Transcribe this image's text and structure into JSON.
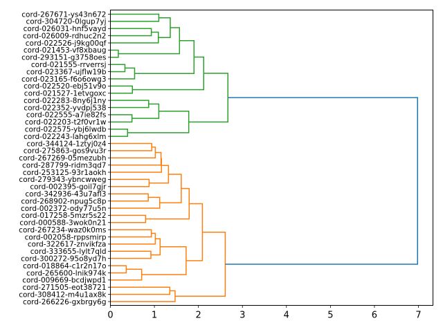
{
  "chart_data": {
    "type": "dendrogram",
    "orientation": "left",
    "title": "",
    "xlabel": "",
    "ylabel": "",
    "xlim": [
      0,
      7.33
    ],
    "xticks": [
      0,
      1,
      2,
      3,
      4,
      5,
      6,
      7
    ],
    "xtick_labels": [
      "0",
      "1",
      "2",
      "3",
      "4",
      "5",
      "6",
      "7"
    ],
    "grid": false,
    "colors": {
      "cluster_1": "#2ca02c",
      "cluster_2": "#ff7f0e",
      "above_threshold": "#1f77b4"
    },
    "leaves": [
      "cord-267671-ys43n672",
      "cord-304720-0lgup7yj",
      "cord-026031-hnf5vayd",
      "cord-026009-rdhuc2n2",
      "cord-022526-j9kg00qf",
      "cord-021453-vf8xbaug",
      "cord-293151-g3758oes",
      "cord-021555-rrverrsj",
      "cord-023367-ujflw19b",
      "cord-023165-f6o6owg3",
      "cord-022520-ebj51v9o",
      "cord-021527-1etvgoxc",
      "cord-022283-8ny6j1ny",
      "cord-022352-yvdpj538",
      "cord-022555-a7ie82fs",
      "cord-022203-t2f0vr1w",
      "cord-022575-ybj6lwdb",
      "cord-022243-lahg6xlm",
      "cord-344124-1ztyj0z4",
      "cord-275863-gos9vu3r",
      "cord-267269-05mezubh",
      "cord-287799-ridm3qd7",
      "cord-253125-93r1aokh",
      "cord-279343-ybncwweg",
      "cord-002395-goil7gjr",
      "cord-342936-43u7afl3",
      "cord-268902-npug5c8p",
      "cord-002372-ody77u5n",
      "cord-017258-5mzr5s22",
      "cord-000588-3wok0n21",
      "cord-267234-waz0k0ms",
      "cord-002058-rppsmirp",
      "cord-322617-znvikfza",
      "cord-333655-lylt7qld",
      "cord-300272-95o8yd7h",
      "cord-018864-c1r2n17o",
      "cord-265600-lnik974k",
      "cord-009669-bcdjwpd1",
      "cord-271505-eot38721",
      "cord-308412-m4u1ax8k",
      "cord-266226-gxbrgy6g"
    ],
    "linkage": [
      [
        0,
        1,
        1.1,
        "cluster_1"
      ],
      [
        2,
        3,
        0.93,
        "cluster_1"
      ],
      [
        42,
        4,
        1.09,
        "cluster_1"
      ],
      [
        41,
        43,
        1.36,
        "cluster_1"
      ],
      [
        5,
        6,
        0.18,
        "cluster_1"
      ],
      [
        44,
        45,
        1.57,
        "cluster_1"
      ],
      [
        7,
        8,
        0.33,
        "cluster_1"
      ],
      [
        47,
        9,
        0.55,
        "cluster_1"
      ],
      [
        46,
        48,
        1.9,
        "cluster_1"
      ],
      [
        10,
        11,
        0.5,
        "cluster_1"
      ],
      [
        49,
        50,
        2.12,
        "cluster_1"
      ],
      [
        12,
        13,
        0.87,
        "cluster_1"
      ],
      [
        14,
        15,
        0.49,
        "cluster_1"
      ],
      [
        52,
        53,
        1.1,
        "cluster_1"
      ],
      [
        16,
        17,
        0.39,
        "cluster_1"
      ],
      [
        54,
        55,
        1.78,
        "cluster_1"
      ],
      [
        51,
        56,
        2.67,
        "cluster_1"
      ],
      [
        18,
        19,
        0.94,
        "cluster_2"
      ],
      [
        58,
        20,
        1.02,
        "cluster_2"
      ],
      [
        59,
        21,
        1.15,
        "cluster_2"
      ],
      [
        60,
        22,
        1.16,
        "cluster_2"
      ],
      [
        23,
        24,
        0.88,
        "cluster_2"
      ],
      [
        61,
        62,
        1.32,
        "cluster_2"
      ],
      [
        25,
        26,
        0.86,
        "cluster_2"
      ],
      [
        64,
        27,
        1.12,
        "cluster_2"
      ],
      [
        63,
        65,
        1.61,
        "cluster_2"
      ],
      [
        28,
        29,
        0.8,
        "cluster_2"
      ],
      [
        66,
        67,
        1.79,
        "cluster_2"
      ],
      [
        30,
        31,
        0.93,
        "cluster_2"
      ],
      [
        69,
        32,
        1.02,
        "cluster_2"
      ],
      [
        33,
        34,
        0.92,
        "cluster_2"
      ],
      [
        70,
        71,
        1.13,
        "cluster_2"
      ],
      [
        35,
        36,
        0.36,
        "cluster_2"
      ],
      [
        73,
        37,
        0.71,
        "cluster_2"
      ],
      [
        72,
        74,
        1.72,
        "cluster_2"
      ],
      [
        68,
        75,
        2.09,
        "cluster_2"
      ],
      [
        38,
        39,
        1.35,
        "cluster_2"
      ],
      [
        77,
        40,
        1.47,
        "cluster_2"
      ],
      [
        76,
        78,
        2.61,
        "cluster_2"
      ],
      [
        57,
        79,
        6.98,
        "above_threshold"
      ]
    ]
  }
}
